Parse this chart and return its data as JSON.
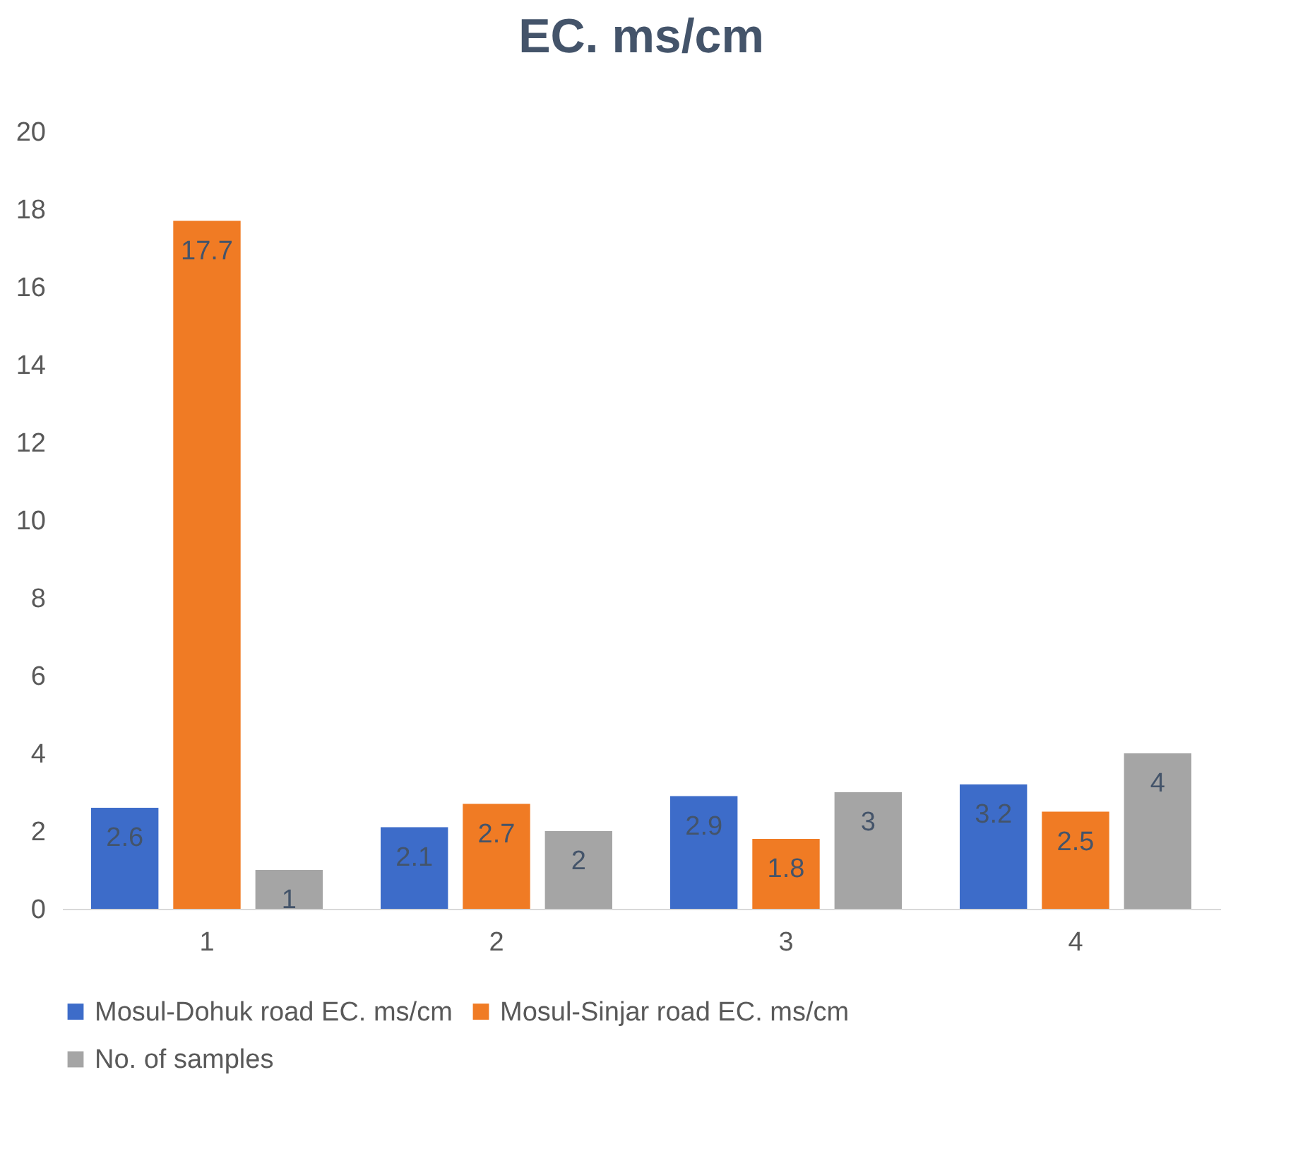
{
  "chart_data": {
    "type": "bar",
    "title": "EC. ms/cm",
    "categories": [
      "1",
      "2",
      "3",
      "4"
    ],
    "series": [
      {
        "name": "Mosul-Dohuk road EC. ms/cm",
        "color": "#3d6cc9",
        "values": [
          2.6,
          2.1,
          2.9,
          3.2
        ]
      },
      {
        "name": "Mosul-Sinjar road EC. ms/cm",
        "color": "#f07b24",
        "values": [
          17.7,
          2.7,
          1.8,
          2.5
        ]
      },
      {
        "name": "No. of samples",
        "color": "#a5a5a5",
        "values": [
          1,
          2,
          3,
          4
        ]
      }
    ],
    "ylim": [
      0,
      20
    ],
    "yticks": [
      0,
      2,
      4,
      6,
      8,
      10,
      12,
      14,
      16,
      18,
      20
    ],
    "grid": false,
    "legend": "bottom",
    "data_labels": true
  }
}
